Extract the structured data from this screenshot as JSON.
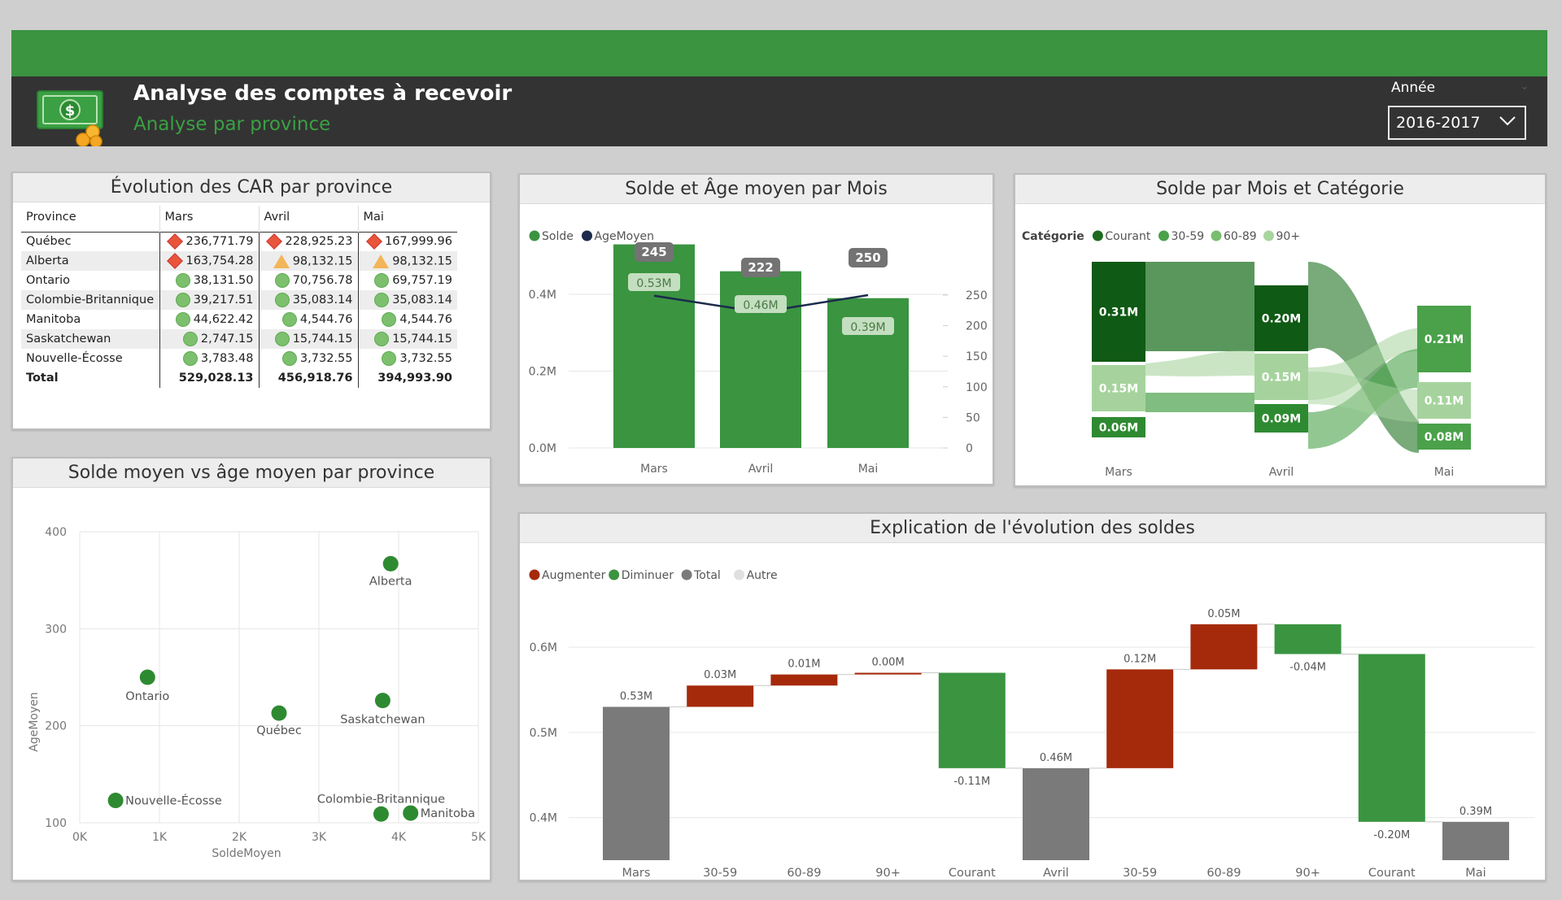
{
  "header": {
    "title": "Analyse des comptes à recevoir",
    "subtitle": "Analyse par province",
    "year_label": "Année",
    "year_value": "2016-2017",
    "colors": {
      "brand": "#3a9440",
      "header_bg": "#333333",
      "subtitle": "#3aa043"
    }
  },
  "table_card": {
    "title": "Évolution des CAR par province",
    "columns": [
      "Province",
      "Mars",
      "Avril",
      "Mai"
    ],
    "rows": [
      {
        "province": "Québec",
        "mars": "236,771.79",
        "avril": "228,925.23",
        "mai": "167,999.96",
        "ind": [
          "diamond",
          "diamond",
          "diamond"
        ]
      },
      {
        "province": "Alberta",
        "mars": "163,754.28",
        "avril": "98,132.15",
        "mai": "98,132.15",
        "ind": [
          "diamond",
          "triangle",
          "triangle"
        ]
      },
      {
        "province": "Ontario",
        "mars": "38,131.50",
        "avril": "70,756.78",
        "mai": "69,757.19",
        "ind": [
          "circle",
          "circle",
          "circle"
        ]
      },
      {
        "province": "Colombie-Britannique",
        "mars": "39,217.51",
        "avril": "35,083.14",
        "mai": "35,083.14",
        "ind": [
          "circle",
          "circle",
          "circle"
        ]
      },
      {
        "province": "Manitoba",
        "mars": "44,622.42",
        "avril": "4,544.76",
        "mai": "4,544.76",
        "ind": [
          "circle",
          "circle",
          "circle"
        ]
      },
      {
        "province": "Saskatchewan",
        "mars": "2,747.15",
        "avril": "15,744.15",
        "mai": "15,744.15",
        "ind": [
          "circle",
          "circle",
          "circle"
        ]
      },
      {
        "province": "Nouvelle-Écosse",
        "mars": "3,783.48",
        "avril": "3,732.55",
        "mai": "3,732.55",
        "ind": [
          "circle",
          "circle",
          "circle"
        ]
      }
    ],
    "total": {
      "label": "Total",
      "mars": "529,028.13",
      "avril": "456,918.76",
      "mai": "394,993.90"
    }
  },
  "chart_data": [
    {
      "id": "solde_age",
      "type": "bar",
      "title": "Solde et Âge moyen par Mois",
      "legend": [
        {
          "name": "Solde",
          "color": "#3a9440"
        },
        {
          "name": "AgeMoyen",
          "color": "#1b2b4b"
        }
      ],
      "categories": [
        "Mars",
        "Avril",
        "Mai"
      ],
      "series": [
        {
          "name": "Solde",
          "values": [
            0.53,
            0.46,
            0.39
          ],
          "labels": [
            "0.53M",
            "0.46M",
            "0.39M"
          ]
        },
        {
          "name": "AgeMoyen",
          "values": [
            245,
            222,
            250
          ],
          "labels": [
            "245",
            "222",
            "250"
          ]
        }
      ],
      "y_left": {
        "ticks": [
          "0.0M",
          "0.2M",
          "0.4M"
        ],
        "range": [
          0,
          0.53
        ]
      },
      "y_right": {
        "ticks": [
          "0",
          "50",
          "100",
          "150",
          "200",
          "250"
        ],
        "range": [
          0,
          250
        ]
      }
    },
    {
      "id": "solde_categorie",
      "type": "area",
      "title": "Solde par Mois et Catégorie",
      "legend_title": "Catégorie",
      "legend": [
        {
          "name": "Courant",
          "color": "#1f6b1f"
        },
        {
          "name": "30-59",
          "color": "#4aa14a"
        },
        {
          "name": "60-89",
          "color": "#79bd6f"
        },
        {
          "name": "90+",
          "color": "#a8d49e"
        }
      ],
      "categories": [
        "Mars",
        "Avril",
        "Mai"
      ],
      "segments": [
        {
          "month": "Mars",
          "label": "0.31M",
          "color": "#0f5a14"
        },
        {
          "month": "Mars",
          "label": "0.15M",
          "color": "#a6d39d"
        },
        {
          "month": "Mars",
          "label": "0.06M",
          "color": "#2e8a31"
        },
        {
          "month": "Avril",
          "label": "0.20M",
          "color": "#0f5a14"
        },
        {
          "month": "Avril",
          "label": "0.15M",
          "color": "#a6d39d"
        },
        {
          "month": "Avril",
          "label": "0.09M",
          "color": "#2e8a31"
        },
        {
          "month": "Mai",
          "label": "0.21M",
          "color": "#4aa14a"
        },
        {
          "month": "Mai",
          "label": "0.11M",
          "color": "#a6d39d"
        },
        {
          "month": "Mai",
          "label": "0.08M",
          "color": "#4aa14a"
        }
      ]
    },
    {
      "id": "scatter_province",
      "type": "scatter",
      "title": "Solde moyen vs âge moyen par province",
      "xlabel": "SoldeMoyen",
      "ylabel": "AgeMoyen",
      "x_ticks": [
        "0K",
        "1K",
        "2K",
        "3K",
        "4K",
        "5K"
      ],
      "y_ticks": [
        "100",
        "200",
        "300",
        "400"
      ],
      "xlim": [
        0,
        5000
      ],
      "ylim": [
        100,
        400
      ],
      "points": [
        {
          "label": "Alberta",
          "x": 3900,
          "y": 367
        },
        {
          "label": "Ontario",
          "x": 850,
          "y": 250
        },
        {
          "label": "Québec",
          "x": 2500,
          "y": 213
        },
        {
          "label": "Saskatchewan",
          "x": 3800,
          "y": 226
        },
        {
          "label": "Nouvelle-Écosse",
          "x": 450,
          "y": 123
        },
        {
          "label": "Colombie-Britannique",
          "x": 3780,
          "y": 109
        },
        {
          "label": "Manitoba",
          "x": 4150,
          "y": 110
        }
      ]
    },
    {
      "id": "waterfall",
      "type": "bar",
      "title": "Explication de l'évolution des soldes",
      "legend": [
        {
          "name": "Augmenter",
          "color": "#a52a0b"
        },
        {
          "name": "Diminuer",
          "color": "#3a9440"
        },
        {
          "name": "Total",
          "color": "#7a7a7a"
        },
        {
          "name": "Autre",
          "color": "#e0e0e0"
        }
      ],
      "y_ticks": [
        "0.4M",
        "0.5M",
        "0.6M"
      ],
      "ylim": [
        0.35,
        0.665
      ],
      "bars": [
        {
          "category": "Mars",
          "kind": "total",
          "start": 0,
          "end": 0.53,
          "label": "0.53M"
        },
        {
          "category": "30-59",
          "kind": "increase",
          "start": 0.53,
          "end": 0.555,
          "label": "0.03M"
        },
        {
          "category": "60-89",
          "kind": "increase",
          "start": 0.555,
          "end": 0.568,
          "label": "0.01M"
        },
        {
          "category": "90+",
          "kind": "increase",
          "start": 0.568,
          "end": 0.57,
          "label": "0.00M"
        },
        {
          "category": "Courant",
          "kind": "decrease",
          "start": 0.57,
          "end": 0.458,
          "label": "-0.11M"
        },
        {
          "category": "Avril",
          "kind": "total",
          "start": 0,
          "end": 0.458,
          "label": "0.46M"
        },
        {
          "category": "30-59",
          "kind": "increase",
          "start": 0.458,
          "end": 0.574,
          "label": "0.12M"
        },
        {
          "category": "60-89",
          "kind": "increase",
          "start": 0.574,
          "end": 0.627,
          "label": "0.05M"
        },
        {
          "category": "90+",
          "kind": "decrease",
          "start": 0.627,
          "end": 0.592,
          "label": "-0.04M"
        },
        {
          "category": "Courant",
          "kind": "decrease",
          "start": 0.592,
          "end": 0.395,
          "label": "-0.20M"
        },
        {
          "category": "Mai",
          "kind": "total",
          "start": 0,
          "end": 0.395,
          "label": "0.39M"
        }
      ]
    }
  ]
}
